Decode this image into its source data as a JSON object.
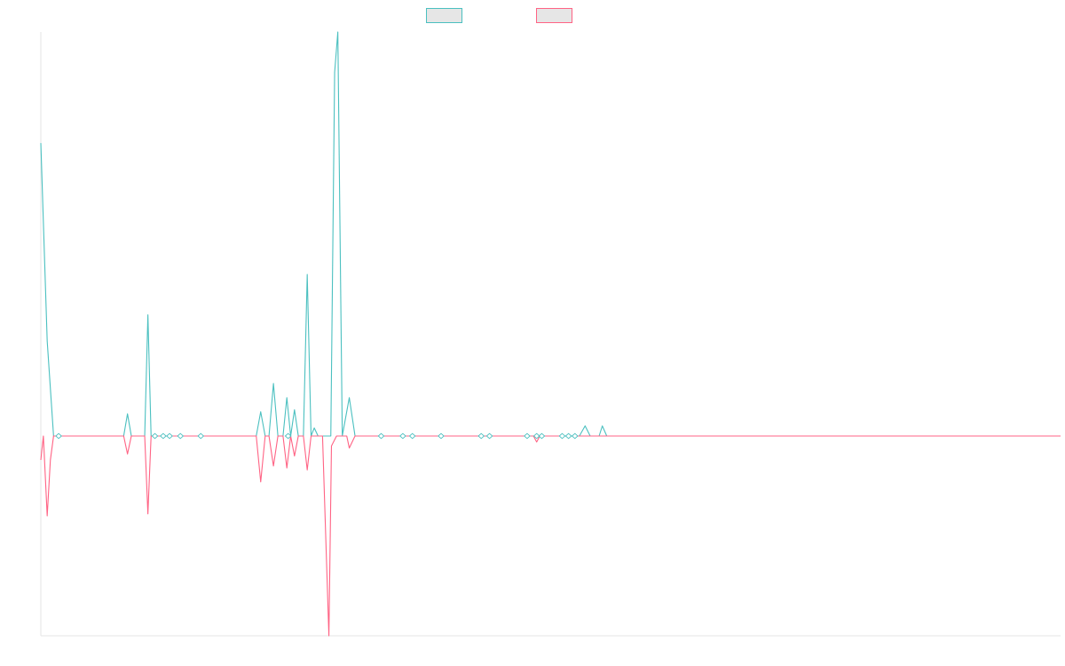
{
  "chart_data": {
    "type": "line",
    "title": "",
    "xlabel": "",
    "ylabel": "",
    "grid": false,
    "legend": "top-center",
    "x_range": [
      0,
      160
    ],
    "ylim": [
      -100,
      200
    ],
    "colors": {
      "series_1": "#4bc0c0",
      "series_2": "#ff6384",
      "legend_fill": "#e6e6e6",
      "axis": "#e5e5e5"
    },
    "series": [
      {
        "name": "",
        "points": [
          [
            0,
            145
          ],
          [
            1,
            47
          ],
          [
            2,
            0
          ],
          [
            3,
            0
          ],
          [
            13,
            0
          ],
          [
            13.6,
            11
          ],
          [
            14.2,
            0
          ],
          [
            16.3,
            0
          ],
          [
            16.8,
            60
          ],
          [
            17.3,
            0
          ],
          [
            25,
            0
          ],
          [
            33.8,
            0
          ],
          [
            34.5,
            12
          ],
          [
            35.2,
            0
          ],
          [
            35.8,
            0
          ],
          [
            36.5,
            26
          ],
          [
            37.2,
            0
          ],
          [
            38,
            0
          ],
          [
            38.6,
            19
          ],
          [
            39.2,
            0
          ],
          [
            39.8,
            13
          ],
          [
            40.4,
            0
          ],
          [
            41.2,
            0
          ],
          [
            41.8,
            80
          ],
          [
            42.4,
            0
          ],
          [
            42.9,
            4
          ],
          [
            43.5,
            0
          ],
          [
            45.5,
            0
          ],
          [
            46.1,
            180
          ],
          [
            46.6,
            200
          ],
          [
            47.3,
            0
          ],
          [
            48.4,
            19
          ],
          [
            49.3,
            0
          ],
          [
            84.5,
            0
          ],
          [
            85.4,
            5
          ],
          [
            86.2,
            0
          ],
          [
            87.6,
            0
          ],
          [
            88.1,
            5
          ],
          [
            88.8,
            0
          ],
          [
            160,
            0
          ]
        ]
      },
      {
        "name": "",
        "points": [
          [
            0,
            -12
          ],
          [
            0.4,
            0
          ],
          [
            1,
            -40
          ],
          [
            1.5,
            -12
          ],
          [
            2,
            0
          ],
          [
            3,
            0
          ],
          [
            13,
            0
          ],
          [
            13.6,
            -9
          ],
          [
            14.2,
            0
          ],
          [
            16.3,
            0
          ],
          [
            16.8,
            -39
          ],
          [
            17.3,
            0
          ],
          [
            25,
            0
          ],
          [
            33.8,
            0
          ],
          [
            34.5,
            -23
          ],
          [
            35.2,
            0
          ],
          [
            35.8,
            0
          ],
          [
            36.5,
            -15
          ],
          [
            37.2,
            0
          ],
          [
            38,
            0
          ],
          [
            38.6,
            -16
          ],
          [
            39.2,
            0
          ],
          [
            39.8,
            -10
          ],
          [
            40.4,
            0
          ],
          [
            41.2,
            0
          ],
          [
            41.8,
            -17
          ],
          [
            42.4,
            0
          ],
          [
            44.2,
            0
          ],
          [
            45.2,
            -100
          ],
          [
            45.6,
            -5
          ],
          [
            46.4,
            0
          ],
          [
            48,
            0
          ],
          [
            48.4,
            -6
          ],
          [
            49.3,
            0
          ],
          [
            77.3,
            0
          ],
          [
            77.8,
            -3
          ],
          [
            78.3,
            0
          ],
          [
            160,
            0
          ]
        ]
      }
    ],
    "markers": [
      {
        "x": 2.8,
        "y": 0
      },
      {
        "x": 17.9,
        "y": 0
      },
      {
        "x": 19.2,
        "y": 0
      },
      {
        "x": 20.2,
        "y": 0
      },
      {
        "x": 21.9,
        "y": 0
      },
      {
        "x": 25.1,
        "y": 0
      },
      {
        "x": 38.8,
        "y": 0
      },
      {
        "x": 53.4,
        "y": 0
      },
      {
        "x": 56.8,
        "y": 0
      },
      {
        "x": 58.3,
        "y": 0
      },
      {
        "x": 62.8,
        "y": 0
      },
      {
        "x": 69.1,
        "y": 0
      },
      {
        "x": 70.4,
        "y": 0
      },
      {
        "x": 76.3,
        "y": 0
      },
      {
        "x": 77.8,
        "y": 0
      },
      {
        "x": 78.6,
        "y": 0
      },
      {
        "x": 81.8,
        "y": 0
      },
      {
        "x": 82.8,
        "y": 0
      },
      {
        "x": 83.8,
        "y": 0
      }
    ]
  }
}
